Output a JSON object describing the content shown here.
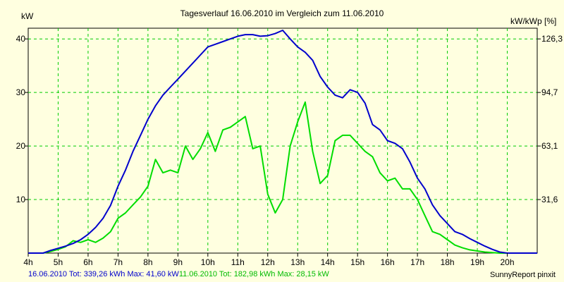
{
  "chart_data": {
    "type": "line",
    "title": "Tagesverlauf 16.06.2010 im Vergleich zum 11.06.2010",
    "ylabel_left": "kW",
    "ylabel_right": "kW/kWp [%]",
    "xlim": [
      4,
      21
    ],
    "ylim": [
      0,
      42
    ],
    "x_ticks": [
      "4h",
      "5h",
      "6h",
      "7h",
      "8h",
      "9h",
      "10h",
      "11h",
      "12h",
      "13h",
      "14h",
      "15h",
      "16h",
      "17h",
      "18h",
      "19h",
      "20h"
    ],
    "y_ticks_left": [
      "10",
      "20",
      "30",
      "40"
    ],
    "y_ticks_right": [
      "31,6",
      "63,1",
      "94,7",
      "126,3"
    ],
    "grid": true,
    "series": [
      {
        "name": "16.06.2010",
        "color": "#0000cc",
        "x": [
          4.0,
          4.25,
          4.5,
          4.75,
          5.0,
          5.25,
          5.5,
          5.75,
          6.0,
          6.25,
          6.5,
          6.75,
          7.0,
          7.25,
          7.5,
          7.75,
          8.0,
          8.25,
          8.5,
          8.75,
          9.0,
          9.25,
          9.5,
          9.75,
          10.0,
          10.25,
          10.5,
          10.75,
          11.0,
          11.25,
          11.5,
          11.75,
          12.0,
          12.25,
          12.5,
          12.75,
          13.0,
          13.25,
          13.5,
          13.75,
          14.0,
          14.25,
          14.5,
          14.75,
          15.0,
          15.25,
          15.5,
          15.75,
          16.0,
          16.25,
          16.5,
          16.75,
          17.0,
          17.25,
          17.5,
          17.75,
          18.0,
          18.25,
          18.5,
          18.75,
          19.0,
          19.25,
          19.5,
          19.75,
          20.0,
          20.25,
          20.5,
          20.75,
          21.0
        ],
        "y": [
          0.0,
          0.0,
          0.0,
          0.5,
          0.9,
          1.3,
          1.8,
          2.5,
          3.5,
          4.8,
          6.5,
          8.9,
          12.5,
          15.5,
          19.0,
          22.0,
          25.0,
          27.5,
          29.5,
          31.0,
          32.5,
          34.0,
          35.5,
          37.0,
          38.5,
          39.0,
          39.5,
          40.0,
          40.5,
          40.8,
          40.8,
          40.5,
          40.6,
          41.0,
          41.6,
          40.0,
          38.5,
          37.5,
          36.0,
          33.0,
          31.0,
          29.5,
          29.0,
          30.5,
          30.0,
          28.0,
          24.0,
          23.0,
          21.0,
          20.5,
          19.5,
          17.0,
          14.0,
          12.0,
          9.0,
          7.0,
          5.5,
          4.0,
          3.5,
          2.7,
          2.0,
          1.3,
          0.7,
          0.2,
          0.0,
          0.0,
          0.0,
          0.0,
          0.0
        ]
      },
      {
        "name": "11.06.2010",
        "color": "#00dd00",
        "x": [
          4.0,
          4.25,
          4.5,
          4.75,
          5.0,
          5.25,
          5.5,
          5.75,
          6.0,
          6.25,
          6.5,
          6.75,
          7.0,
          7.25,
          7.5,
          7.75,
          8.0,
          8.25,
          8.5,
          8.75,
          9.0,
          9.25,
          9.5,
          9.75,
          10.0,
          10.25,
          10.5,
          10.75,
          11.0,
          11.25,
          11.5,
          11.75,
          12.0,
          12.25,
          12.5,
          12.75,
          13.0,
          13.25,
          13.5,
          13.75,
          14.0,
          14.25,
          14.5,
          14.75,
          15.0,
          15.25,
          15.5,
          15.75,
          16.0,
          16.25,
          16.5,
          16.75,
          17.0,
          17.25,
          17.5,
          17.75,
          18.0,
          18.25,
          18.5,
          18.75,
          19.0,
          19.25,
          19.5,
          19.75,
          20.0,
          20.25,
          20.5,
          20.75,
          21.0
        ],
        "y": [
          0.0,
          0.0,
          0.0,
          0.3,
          0.7,
          1.2,
          2.3,
          2.0,
          2.5,
          2.0,
          2.8,
          4.0,
          6.5,
          7.5,
          9.0,
          10.5,
          12.5,
          17.5,
          15.0,
          15.5,
          15.0,
          20.0,
          17.5,
          19.5,
          22.5,
          19.0,
          23.0,
          23.5,
          24.5,
          25.5,
          19.5,
          20.0,
          11.0,
          7.5,
          10.0,
          20.0,
          24.5,
          28.2,
          19.0,
          13.0,
          14.5,
          21.0,
          22.0,
          22.0,
          20.5,
          19.0,
          18.0,
          15.0,
          13.5,
          14.0,
          12.0,
          12.0,
          10.0,
          7.0,
          4.0,
          3.5,
          2.5,
          1.5,
          1.0,
          0.6,
          0.4,
          0.2,
          0.1,
          0.0,
          0.0,
          0.0,
          0.0,
          0.0,
          0.0
        ]
      }
    ]
  },
  "footer": {
    "blue_text": "16.06.2010 Tot: 339,26 kWh Max: 41,60 kW",
    "green_text": "11.06.2010 Tot: 182,98 kWh Max: 28,15 kW",
    "credit": "SunnyReport pinxit"
  }
}
